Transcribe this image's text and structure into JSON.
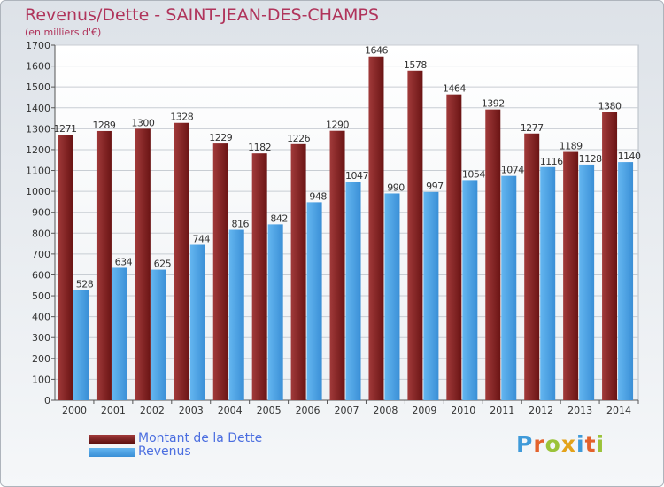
{
  "chart_data": {
    "type": "bar",
    "title": "Revenus/Dette - SAINT-JEAN-DES-CHAMPS",
    "subtitle": "(en milliers d'€)",
    "categories": [
      "2000",
      "2001",
      "2002",
      "2003",
      "2004",
      "2005",
      "2006",
      "2007",
      "2008",
      "2009",
      "2010",
      "2011",
      "2012",
      "2013",
      "2014"
    ],
    "series": [
      {
        "name": "Montant de la Dette",
        "color": "#7d1f1f",
        "values": [
          1271,
          1289,
          1300,
          1328,
          1229,
          1182,
          1226,
          1290,
          1646,
          1578,
          1464,
          1392,
          1277,
          1189,
          1380
        ]
      },
      {
        "name": "Revenus",
        "color": "#4aa3e6",
        "values": [
          528,
          634,
          625,
          744,
          816,
          842,
          948,
          1047,
          990,
          997,
          1054,
          1074,
          1116,
          1128,
          1140
        ]
      }
    ],
    "ylim": [
      0,
      1700
    ],
    "yticks": [
      0,
      100,
      200,
      300,
      400,
      500,
      600,
      700,
      800,
      900,
      1000,
      1100,
      1200,
      1300,
      1400,
      1500,
      1600,
      1700
    ],
    "grid": true,
    "legend": "bottom-left"
  },
  "logo_text": "Proxiti"
}
